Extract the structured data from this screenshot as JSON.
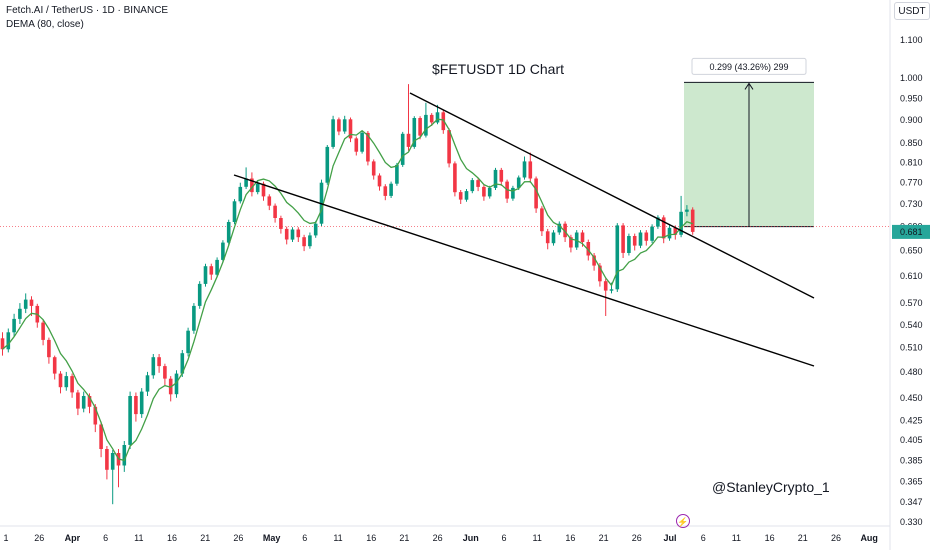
{
  "header": {
    "symbol_line": "Fetch.AI / TetherUS · 1D · BINANCE",
    "indicator_line": "DEMA (80, close)"
  },
  "currency_button": "USDT",
  "watermark": "@StanleyCrypto_1",
  "colors": {
    "up": "#089981",
    "down": "#f23645",
    "dema": "#43a047",
    "target_box": "#c8e6c9",
    "price_tag": "#26a69a",
    "trendline": "#000000"
  },
  "chart_data": {
    "type": "candlestick",
    "title": "$FETUSDT 1D Chart",
    "currency": "USDT",
    "y_axis_labels": [
      "1.100",
      "1.000",
      "0.950",
      "0.900",
      "0.850",
      "0.810",
      "0.770",
      "0.730",
      "0.690",
      "0.650",
      "0.610",
      "0.570",
      "0.540",
      "0.510",
      "0.480",
      "0.450",
      "0.425",
      "0.405",
      "0.385",
      "0.365",
      "0.347",
      "0.330"
    ],
    "x_axis_labels": [
      "1",
      "26",
      "Apr",
      "6",
      "11",
      "16",
      "21",
      "26",
      "May",
      "6",
      "11",
      "16",
      "21",
      "26",
      "Jun",
      "6",
      "11",
      "16",
      "21",
      "26",
      "Jul",
      "6",
      "11",
      "16",
      "21",
      "26",
      "Aug"
    ],
    "last_price": "0.681",
    "measure": {
      "label": "0.299 (43.26%) 299",
      "from": 0.69,
      "to": 0.989
    },
    "dema": {
      "name": "DEMA (80, close)"
    },
    "trendlines": [
      {
        "from": [
          "Apr 25",
          0.785
        ],
        "to": [
          "Aug 18",
          0.49
        ]
      },
      {
        "from": [
          "May 22",
          0.985
        ],
        "to": [
          "Aug 18",
          0.58
        ]
      }
    ],
    "candles": [
      [
        0.522,
        0.508,
        0.53,
        0.5
      ],
      [
        0.508,
        0.53,
        0.535,
        0.504
      ],
      [
        0.53,
        0.548,
        0.555,
        0.524
      ],
      [
        0.548,
        0.562,
        0.57,
        0.541
      ],
      [
        0.562,
        0.575,
        0.584,
        0.556
      ],
      [
        0.575,
        0.566,
        0.58,
        0.552
      ],
      [
        0.566,
        0.543,
        0.569,
        0.536
      ],
      [
        0.543,
        0.52,
        0.546,
        0.513
      ],
      [
        0.52,
        0.498,
        0.523,
        0.49
      ],
      [
        0.498,
        0.478,
        0.5,
        0.471
      ],
      [
        0.478,
        0.462,
        0.481,
        0.455
      ],
      [
        0.462,
        0.475,
        0.48,
        0.458
      ],
      [
        0.475,
        0.456,
        0.478,
        0.45
      ],
      [
        0.456,
        0.438,
        0.459,
        0.431
      ],
      [
        0.438,
        0.452,
        0.457,
        0.434
      ],
      [
        0.452,
        0.44,
        0.455,
        0.433
      ],
      [
        0.44,
        0.421,
        0.443,
        0.413
      ],
      [
        0.421,
        0.396,
        0.424,
        0.388
      ],
      [
        0.396,
        0.376,
        0.399,
        0.367
      ],
      [
        0.376,
        0.392,
        0.395,
        0.345
      ],
      [
        0.392,
        0.38,
        0.396,
        0.36
      ],
      [
        0.38,
        0.4,
        0.404,
        0.374
      ],
      [
        0.4,
        0.452,
        0.457,
        0.396
      ],
      [
        0.452,
        0.432,
        0.456,
        0.424
      ],
      [
        0.432,
        0.457,
        0.461,
        0.428
      ],
      [
        0.457,
        0.476,
        0.48,
        0.452
      ],
      [
        0.476,
        0.498,
        0.502,
        0.472
      ],
      [
        0.498,
        0.487,
        0.502,
        0.479
      ],
      [
        0.487,
        0.472,
        0.49,
        0.464
      ],
      [
        0.472,
        0.454,
        0.475,
        0.446
      ],
      [
        0.454,
        0.478,
        0.482,
        0.45
      ],
      [
        0.478,
        0.503,
        0.507,
        0.474
      ],
      [
        0.503,
        0.532,
        0.536,
        0.499
      ],
      [
        0.532,
        0.566,
        0.57,
        0.528
      ],
      [
        0.566,
        0.598,
        0.602,
        0.562
      ],
      [
        0.598,
        0.625,
        0.629,
        0.594
      ],
      [
        0.625,
        0.612,
        0.629,
        0.604
      ],
      [
        0.612,
        0.635,
        0.639,
        0.608
      ],
      [
        0.635,
        0.663,
        0.667,
        0.631
      ],
      [
        0.663,
        0.698,
        0.702,
        0.659
      ],
      [
        0.698,
        0.735,
        0.739,
        0.694
      ],
      [
        0.735,
        0.762,
        0.77,
        0.731
      ],
      [
        0.762,
        0.778,
        0.8,
        0.758
      ],
      [
        0.778,
        0.752,
        0.79,
        0.744
      ],
      [
        0.752,
        0.768,
        0.775,
        0.748
      ],
      [
        0.768,
        0.744,
        0.772,
        0.736
      ],
      [
        0.744,
        0.727,
        0.748,
        0.719
      ],
      [
        0.727,
        0.705,
        0.731,
        0.697
      ],
      [
        0.705,
        0.686,
        0.709,
        0.678
      ],
      [
        0.686,
        0.668,
        0.69,
        0.66
      ],
      [
        0.668,
        0.685,
        0.689,
        0.664
      ],
      [
        0.685,
        0.672,
        0.689,
        0.664
      ],
      [
        0.672,
        0.657,
        0.676,
        0.649
      ],
      [
        0.657,
        0.675,
        0.68,
        0.653
      ],
      [
        0.675,
        0.695,
        0.7,
        0.671
      ],
      [
        0.695,
        0.77,
        0.776,
        0.691
      ],
      [
        0.77,
        0.842,
        0.846,
        0.766
      ],
      [
        0.842,
        0.902,
        0.91,
        0.838
      ],
      [
        0.902,
        0.875,
        0.906,
        0.867
      ],
      [
        0.875,
        0.902,
        0.91,
        0.87
      ],
      [
        0.902,
        0.86,
        0.906,
        0.852
      ],
      [
        0.86,
        0.832,
        0.864,
        0.824
      ],
      [
        0.832,
        0.872,
        0.876,
        0.828
      ],
      [
        0.872,
        0.812,
        0.876,
        0.804
      ],
      [
        0.812,
        0.784,
        0.816,
        0.776
      ],
      [
        0.784,
        0.763,
        0.788,
        0.755
      ],
      [
        0.763,
        0.745,
        0.767,
        0.737
      ],
      [
        0.745,
        0.768,
        0.772,
        0.741
      ],
      [
        0.768,
        0.805,
        0.809,
        0.764
      ],
      [
        0.805,
        0.87,
        0.874,
        0.801
      ],
      [
        0.87,
        0.842,
        0.985,
        0.834
      ],
      [
        0.842,
        0.905,
        0.909,
        0.838
      ],
      [
        0.905,
        0.866,
        0.909,
        0.858
      ],
      [
        0.866,
        0.912,
        0.94,
        0.862
      ],
      [
        0.912,
        0.895,
        0.916,
        0.887
      ],
      [
        0.895,
        0.918,
        0.935,
        0.891
      ],
      [
        0.918,
        0.878,
        0.922,
        0.87
      ],
      [
        0.878,
        0.808,
        0.882,
        0.8
      ],
      [
        0.808,
        0.752,
        0.812,
        0.744
      ],
      [
        0.752,
        0.738,
        0.756,
        0.73
      ],
      [
        0.738,
        0.754,
        0.758,
        0.734
      ],
      [
        0.754,
        0.775,
        0.779,
        0.75
      ],
      [
        0.775,
        0.762,
        0.779,
        0.754
      ],
      [
        0.762,
        0.744,
        0.766,
        0.736
      ],
      [
        0.744,
        0.76,
        0.764,
        0.74
      ],
      [
        0.76,
        0.795,
        0.799,
        0.756
      ],
      [
        0.795,
        0.772,
        0.799,
        0.764
      ],
      [
        0.772,
        0.74,
        0.776,
        0.732
      ],
      [
        0.74,
        0.76,
        0.764,
        0.736
      ],
      [
        0.76,
        0.78,
        0.784,
        0.756
      ],
      [
        0.78,
        0.812,
        0.822,
        0.776
      ],
      [
        0.812,
        0.778,
        0.83,
        0.77
      ],
      [
        0.778,
        0.722,
        0.782,
        0.714
      ],
      [
        0.722,
        0.682,
        0.726,
        0.674
      ],
      [
        0.682,
        0.662,
        0.686,
        0.652
      ],
      [
        0.662,
        0.68,
        0.684,
        0.658
      ],
      [
        0.68,
        0.695,
        0.699,
        0.676
      ],
      [
        0.695,
        0.672,
        0.699,
        0.664
      ],
      [
        0.672,
        0.655,
        0.676,
        0.647
      ],
      [
        0.655,
        0.68,
        0.684,
        0.651
      ],
      [
        0.68,
        0.664,
        0.684,
        0.656
      ],
      [
        0.664,
        0.642,
        0.668,
        0.634
      ],
      [
        0.642,
        0.626,
        0.646,
        0.618
      ],
      [
        0.626,
        0.602,
        0.63,
        0.594
      ],
      [
        0.602,
        0.588,
        0.606,
        0.552
      ],
      [
        0.588,
        0.59,
        0.6,
        0.584
      ],
      [
        0.59,
        0.692,
        0.696,
        0.586
      ],
      [
        0.692,
        0.646,
        0.696,
        0.638
      ],
      [
        0.646,
        0.674,
        0.678,
        0.642
      ],
      [
        0.674,
        0.658,
        0.678,
        0.65
      ],
      [
        0.658,
        0.68,
        0.684,
        0.654
      ],
      [
        0.68,
        0.666,
        0.684,
        0.658
      ],
      [
        0.666,
        0.69,
        0.694,
        0.662
      ],
      [
        0.69,
        0.706,
        0.71,
        0.686
      ],
      [
        0.706,
        0.67,
        0.71,
        0.662
      ],
      [
        0.67,
        0.688,
        0.692,
        0.666
      ],
      [
        0.688,
        0.676,
        0.692,
        0.668
      ],
      [
        0.676,
        0.716,
        0.745,
        0.672
      ],
      [
        0.716,
        0.72,
        0.728,
        0.708
      ],
      [
        0.72,
        0.681,
        0.724,
        0.676
      ]
    ]
  }
}
